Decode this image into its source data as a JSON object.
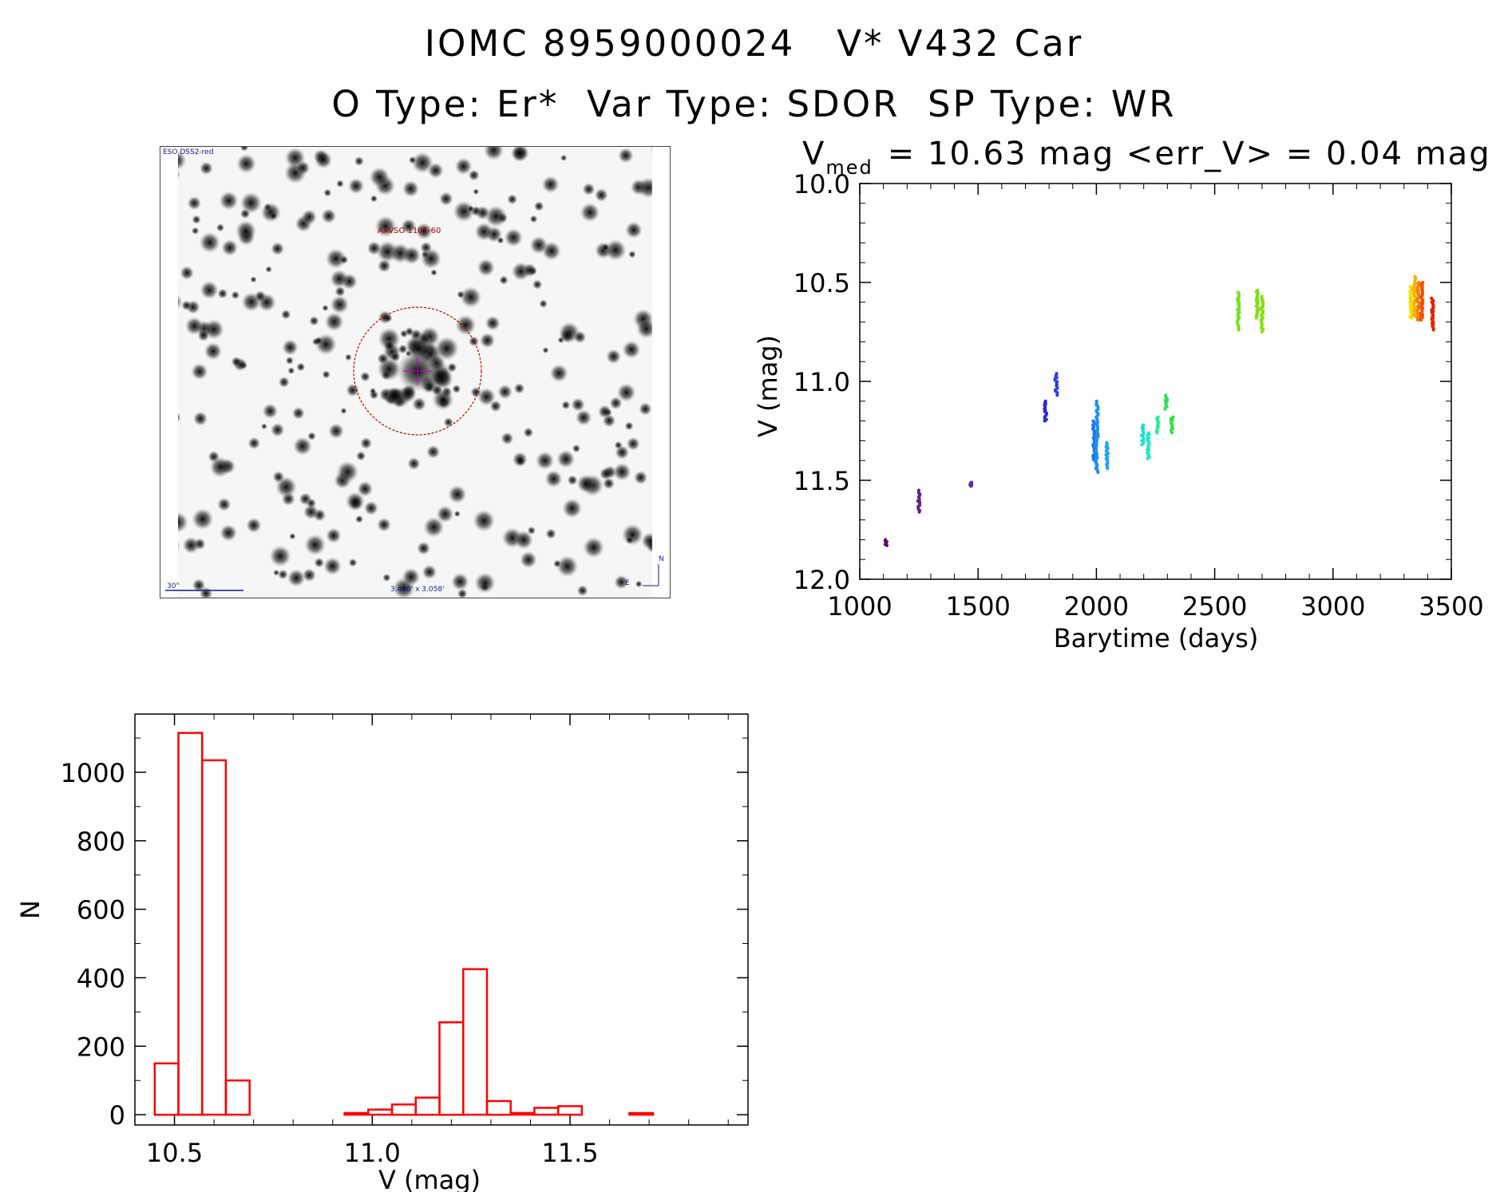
{
  "header": {
    "line1": "IOMC 8959000024   V* V432 Car",
    "line2": "O Type: Er*  Var Type: SDOR  SP Type: WR"
  },
  "sky_image": {
    "survey": "ESO DSS2-red",
    "target_label": "AAVSO 1101-60",
    "scale_label": "30\"",
    "fov_label": "3.448' x 3.058'",
    "compass_n": "N",
    "compass_e": "E"
  },
  "chart_data": [
    {
      "type": "scatter",
      "title_prefix": "V",
      "title_sub": "med",
      "title_rest": "= 10.63 mag <err_V> = 0.04 mag",
      "xlabel": "Barytime (days)",
      "ylabel": "V (mag)",
      "xlim": [
        1000,
        3500
      ],
      "ylim": [
        12.0,
        10.0
      ],
      "y_inverted": true,
      "xticks": [
        "1000",
        "1500",
        "2000",
        "2500",
        "3000",
        "3500"
      ],
      "yticks": [
        "10.0",
        "10.5",
        "11.0",
        "11.5",
        "12.0"
      ],
      "groups": [
        {
          "x": 1110,
          "ymin": 11.8,
          "ymax": 11.83,
          "color": "#55106a"
        },
        {
          "x": 1250,
          "ymin": 11.55,
          "ymax": 11.66,
          "color": "#6a1a8a"
        },
        {
          "x": 1470,
          "ymin": 11.51,
          "ymax": 11.53,
          "color": "#5a28b0"
        },
        {
          "x": 1785,
          "ymin": 11.1,
          "ymax": 11.2,
          "color": "#2a2ad0"
        },
        {
          "x": 1830,
          "ymin": 10.96,
          "ymax": 11.07,
          "color": "#2e3ce0"
        },
        {
          "x": 1990,
          "ymin": 11.2,
          "ymax": 11.4,
          "color": "#1a78e8"
        },
        {
          "x": 2003,
          "ymin": 11.1,
          "ymax": 11.46,
          "color": "#1a90f0"
        },
        {
          "x": 2045,
          "ymin": 11.31,
          "ymax": 11.44,
          "color": "#1aa8f0"
        },
        {
          "x": 2195,
          "ymin": 11.22,
          "ymax": 11.32,
          "color": "#1ae0d8"
        },
        {
          "x": 2220,
          "ymin": 11.26,
          "ymax": 11.39,
          "color": "#20e8c0"
        },
        {
          "x": 2260,
          "ymin": 11.18,
          "ymax": 11.26,
          "color": "#28e890"
        },
        {
          "x": 2295,
          "ymin": 11.07,
          "ymax": 11.14,
          "color": "#30e060"
        },
        {
          "x": 2320,
          "ymin": 11.18,
          "ymax": 11.26,
          "color": "#38e048"
        },
        {
          "x": 2600,
          "ymin": 10.55,
          "ymax": 10.74,
          "color": "#78e020"
        },
        {
          "x": 2680,
          "ymin": 10.54,
          "ymax": 10.68,
          "color": "#7ee018"
        },
        {
          "x": 2700,
          "ymin": 10.57,
          "ymax": 10.75,
          "color": "#86e010"
        },
        {
          "x": 3330,
          "ymin": 10.52,
          "ymax": 10.68,
          "color": "#f0e000"
        },
        {
          "x": 3345,
          "ymin": 10.47,
          "ymax": 10.67,
          "color": "#f8b000"
        },
        {
          "x": 3360,
          "ymin": 10.5,
          "ymax": 10.69,
          "color": "#f88000"
        },
        {
          "x": 3375,
          "ymin": 10.5,
          "ymax": 10.69,
          "color": "#f05000"
        },
        {
          "x": 3420,
          "ymin": 10.58,
          "ymax": 10.74,
          "color": "#e82000"
        }
      ]
    },
    {
      "type": "bar",
      "subtype": "histogram",
      "xlabel": "V (mag)",
      "ylabel": "N",
      "xlim": [
        10.4,
        11.95
      ],
      "ylim": [
        -30,
        1170
      ],
      "xticks": [
        "10.5",
        "11.0",
        "11.5"
      ],
      "yticks": [
        "0",
        "200",
        "400",
        "600",
        "800",
        "1000"
      ],
      "bar_color": "#ff0000",
      "bin_width": 0.06,
      "bin_starts": [
        10.45,
        10.51,
        10.57,
        10.63,
        10.69,
        10.75,
        10.81,
        10.87,
        10.93,
        10.99,
        11.05,
        11.11,
        11.17,
        11.23,
        11.29,
        11.35,
        11.41,
        11.47,
        11.53,
        11.59,
        11.65,
        11.71,
        11.77,
        11.83
      ],
      "counts": [
        150,
        1115,
        1035,
        100,
        0,
        0,
        0,
        0,
        5,
        15,
        30,
        50,
        270,
        425,
        40,
        5,
        20,
        25,
        0,
        0,
        5,
        0,
        0,
        0
      ]
    }
  ]
}
